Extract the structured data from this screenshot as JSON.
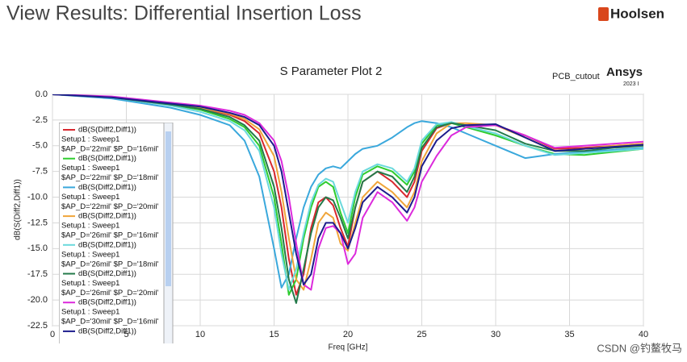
{
  "header": {
    "title": "View Results: Differential Insertion Loss",
    "logo": "Hoolsen"
  },
  "chart_data": {
    "type": "line",
    "title": "S Parameter Plot 2",
    "design_name": "PCB_cutout",
    "brand": "Ansys",
    "version": "2023 I",
    "x_label": "Freq [GHz]",
    "y_label": "dB(S(Diff2,Diff1))",
    "xlim": [
      0,
      40
    ],
    "ylim": [
      -22.5,
      0
    ],
    "xticks": [
      0,
      5,
      10,
      15,
      20,
      25,
      30,
      35,
      40
    ],
    "yticks": [
      {
        "value": 0,
        "label": "0.0"
      },
      -2.5,
      {
        "value": -5,
        "label": "-5.0"
      },
      -7.5,
      {
        "value": -10,
        "label": "-10.0"
      },
      -12.5,
      {
        "value": -15,
        "label": "-15.0"
      },
      -17.5,
      {
        "value": -20,
        "label": "-20.0"
      },
      -22.5
    ],
    "grid": true,
    "legend": "left",
    "x": [
      0,
      4,
      8,
      10,
      12,
      13,
      14,
      15,
      15.5,
      16,
      16.5,
      17,
      17.5,
      18,
      18.5,
      19,
      19.5,
      20,
      20.5,
      21,
      22,
      23,
      24,
      24.5,
      25,
      26,
      27,
      28,
      30,
      32,
      34,
      36,
      38,
      40
    ],
    "series": [
      {
        "name": "dB(S(Diff2,Diff1))",
        "setup": "Setup1 : Sweep1",
        "params": "$AP_D='22mil' $P_D='16mil'",
        "color": "#d8282e",
        "values": [
          0,
          -0.3,
          -0.9,
          -1.3,
          -2.0,
          -2.6,
          -3.8,
          -7.5,
          -11,
          -16,
          -19.5,
          -17.5,
          -13,
          -10.5,
          -10,
          -10.8,
          -13,
          -14.8,
          -11,
          -8.5,
          -7.5,
          -8.5,
          -10,
          -8.5,
          -5.5,
          -3.3,
          -2.8,
          -3.0,
          -3.0,
          -4.0,
          -5.3,
          -5.2,
          -5.0,
          -4.8
        ]
      },
      {
        "name": "dB(S(Diff2,Diff1))",
        "setup": "Setup1 : Sweep1",
        "params": "$AP_D='22mil' $P_D='18mil'",
        "color": "#2ecc2e",
        "values": [
          0,
          -0.3,
          -1.0,
          -1.5,
          -2.4,
          -3.2,
          -5,
          -10,
          -14.5,
          -19.5,
          -18,
          -14,
          -11,
          -9,
          -8.5,
          -9,
          -11.5,
          -13.5,
          -10,
          -7.8,
          -7,
          -7.5,
          -8.8,
          -7.5,
          -4.8,
          -3.0,
          -2.8,
          -3.2,
          -4.0,
          -5.0,
          -5.8,
          -5.9,
          -5.6,
          -5.3
        ]
      },
      {
        "name": "dB(S(Diff2,Diff1))",
        "setup": "Setup1 : Sweep1",
        "params": "$AP_D='22mil' $P_D='20mil'",
        "color": "#3aa8dc",
        "values": [
          0,
          -0.4,
          -1.3,
          -2.0,
          -3.0,
          -4.5,
          -8,
          -15,
          -18.8,
          -17.5,
          -14,
          -11,
          -9,
          -7.8,
          -7.2,
          -7.0,
          -7.2,
          -6.5,
          -5.8,
          -5.3,
          -5.0,
          -4.2,
          -3.2,
          -2.8,
          -2.6,
          -2.8,
          -3.2,
          -3.8,
          -5.0,
          -6.2,
          -5.8,
          -5.6,
          -5.4,
          -5.2
        ]
      },
      {
        "name": "dB(S(Diff2,Diff1))",
        "setup": "Setup1 : Sweep1",
        "params": "$AP_D='26mil' $P_D='16mil'",
        "color": "#f0a53a",
        "values": [
          0,
          -0.3,
          -0.9,
          -1.3,
          -1.9,
          -2.4,
          -3.4,
          -6,
          -9.5,
          -14,
          -18,
          -19,
          -16,
          -12.5,
          -11.5,
          -12,
          -14.5,
          -15.2,
          -12.5,
          -10,
          -8.5,
          -9.5,
          -11,
          -9.5,
          -6.5,
          -3.8,
          -2.8,
          -2.8,
          -3.0,
          -4.2,
          -5.5,
          -5.3,
          -5.0,
          -4.8
        ]
      },
      {
        "name": "dB(S(Diff2,Diff1))",
        "setup": "Setup1 : Sweep1",
        "params": "$AP_D='26mil' $P_D='18mil'",
        "color": "#6ad9dc",
        "values": [
          0,
          -0.3,
          -1.1,
          -1.7,
          -2.6,
          -3.5,
          -5.5,
          -11,
          -15.5,
          -19,
          -17,
          -13.5,
          -10.5,
          -8.8,
          -8.2,
          -8.5,
          -10.5,
          -12.5,
          -9.5,
          -7.5,
          -6.8,
          -7.2,
          -8.5,
          -7.2,
          -4.5,
          -2.9,
          -2.7,
          -3.1,
          -3.8,
          -5.0,
          -5.9,
          -5.7,
          -5.5,
          -5.3
        ]
      },
      {
        "name": "dB(S(Diff2,Diff1))",
        "setup": "Setup1 : Sweep1",
        "params": "$AP_D='26mil' $P_D='20mil'",
        "color": "#237a4a",
        "values": [
          0,
          -0.3,
          -1.0,
          -1.4,
          -2.2,
          -3.0,
          -4.5,
          -9,
          -13,
          -18,
          -20.3,
          -17,
          -13.5,
          -11,
          -10,
          -10.3,
          -12,
          -14,
          -11,
          -8.5,
          -7.5,
          -8,
          -9.5,
          -8,
          -5.2,
          -3.2,
          -2.8,
          -3.0,
          -3.5,
          -4.8,
          -5.5,
          -5.5,
          -5.2,
          -5.0
        ]
      },
      {
        "name": "dB(S(Diff2,Diff1))",
        "setup": "Setup1 : Sweep1",
        "params": "$AP_D='30mil' $P_D='16mil'",
        "color": "#dc2adc",
        "values": [
          0,
          -0.2,
          -0.8,
          -1.1,
          -1.6,
          -2.0,
          -2.8,
          -4.5,
          -6.5,
          -10,
          -14.5,
          -18.5,
          -19,
          -15,
          -13,
          -12.8,
          -13.5,
          -16.5,
          -15.5,
          -12,
          -9.5,
          -10.5,
          -12.3,
          -11,
          -8.5,
          -6,
          -4,
          -3.2,
          -3.0,
          -4.0,
          -5.2,
          -5.0,
          -4.8,
          -4.6
        ]
      },
      {
        "name": "dB(S(Diff2,Diff1))",
        "color": "#1c1c8c",
        "values": [
          0,
          -0.3,
          -0.9,
          -1.2,
          -1.8,
          -2.2,
          -3.0,
          -5,
          -7.5,
          -11.5,
          -15.5,
          -18.5,
          -17.5,
          -14,
          -12.5,
          -12.5,
          -13.5,
          -15,
          -13,
          -10.5,
          -9,
          -10,
          -11.5,
          -10,
          -7,
          -4.5,
          -3.3,
          -3.0,
          -2.9,
          -4.2,
          -5.5,
          -5.3,
          -5.1,
          -4.9
        ]
      }
    ]
  },
  "watermark": "CSDN @钓鳌牧马"
}
